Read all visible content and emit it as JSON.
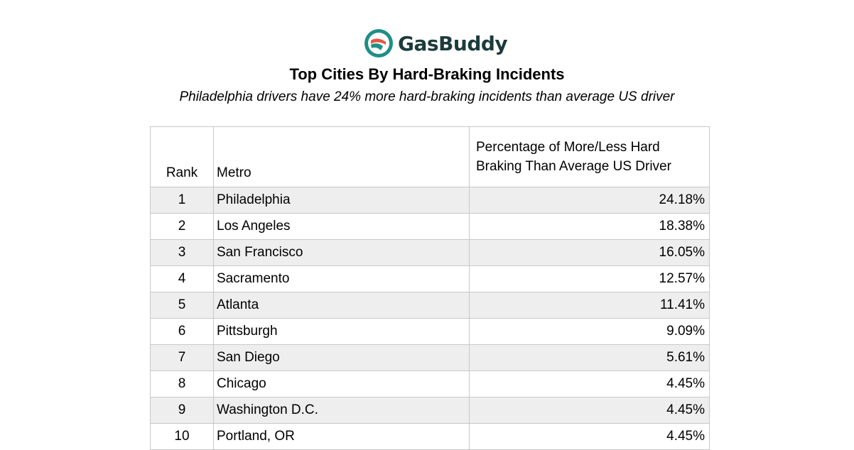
{
  "logo": {
    "text": "GasBuddy",
    "icon": "gasbuddy-logo-icon",
    "colors": {
      "ring": "#1f8f86",
      "stripe": "#e8553f",
      "text": "#1d3b3c"
    }
  },
  "header": {
    "title": "Top Cities By Hard-Braking Incidents",
    "subtitle": "Philadelphia drivers have 24% more hard-braking incidents than average US driver"
  },
  "table": {
    "columns": {
      "rank": "Rank",
      "metro": "Metro",
      "pct": "Percentage of More/Less Hard Braking Than Average US Driver"
    },
    "rows": [
      {
        "rank": "1",
        "metro": "Philadelphia",
        "pct": "24.18%"
      },
      {
        "rank": "2",
        "metro": "Los Angeles",
        "pct": "18.38%"
      },
      {
        "rank": "3",
        "metro": "San Francisco",
        "pct": "16.05%"
      },
      {
        "rank": "4",
        "metro": "Sacramento",
        "pct": "12.57%"
      },
      {
        "rank": "5",
        "metro": "Atlanta",
        "pct": "11.41%"
      },
      {
        "rank": "6",
        "metro": "Pittsburgh",
        "pct": "9.09%"
      },
      {
        "rank": "7",
        "metro": "San Diego",
        "pct": "5.61%"
      },
      {
        "rank": "8",
        "metro": "Chicago",
        "pct": "4.45%"
      },
      {
        "rank": "9",
        "metro": "Washington D.C.",
        "pct": "4.45%"
      },
      {
        "rank": "10",
        "metro": "Portland, OR",
        "pct": "4.45%"
      }
    ]
  }
}
